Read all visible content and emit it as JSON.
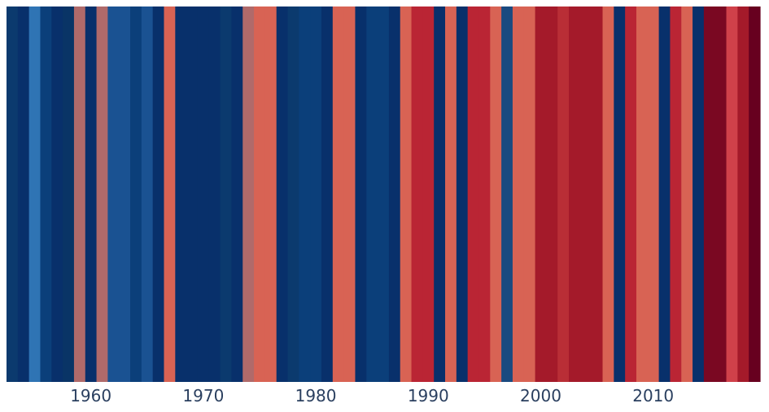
{
  "chart_data": {
    "type": "heatmap",
    "title": "",
    "xlabel": "",
    "ylabel": "",
    "x_start": 1953,
    "x_end": 2019,
    "xlim": [
      1952.5,
      2019.5
    ],
    "x_ticks": [
      1960,
      1970,
      1980,
      1990,
      2000,
      2010
    ],
    "x_tick_labels": [
      "1960",
      "1970",
      "1980",
      "1990",
      "2000",
      "2010"
    ],
    "grid": false,
    "legend": false,
    "years": [
      1953,
      1954,
      1955,
      1956,
      1957,
      1958,
      1959,
      1960,
      1961,
      1962,
      1963,
      1964,
      1965,
      1966,
      1967,
      1968,
      1969,
      1970,
      1971,
      1972,
      1973,
      1974,
      1975,
      1976,
      1977,
      1978,
      1979,
      1980,
      1981,
      1982,
      1983,
      1984,
      1985,
      1986,
      1987,
      1988,
      1989,
      1990,
      1991,
      1992,
      1993,
      1994,
      1995,
      1996,
      1997,
      1998,
      1999,
      2000,
      2001,
      2002,
      2003,
      2004,
      2005,
      2006,
      2007,
      2008,
      2009,
      2010,
      2011,
      2012,
      2013,
      2014,
      2015,
      2016,
      2017,
      2018,
      2019
    ],
    "colors": [
      "#0b3a6e",
      "#08306b",
      "#2f74b4",
      "#0b3f7a",
      "#08306b",
      "#093466",
      "#b06a6a",
      "#08306b",
      "#b06a6a",
      "#1a5292",
      "#1a5292",
      "#0b3f7a",
      "#1a5292",
      "#08306b",
      "#d86354",
      "#08306b",
      "#08306b",
      "#08306b",
      "#08306b",
      "#0b3a6e",
      "#08306b",
      "#b06a6a",
      "#d86354",
      "#d86354",
      "#08306b",
      "#0b3a6e",
      "#0b3f7a",
      "#0b3f7a",
      "#08306b",
      "#d86354",
      "#d86354",
      "#08306b",
      "#0b3f7a",
      "#0b3f7a",
      "#08306b",
      "#d86354",
      "#ba2534",
      "#ba2534",
      "#08306b",
      "#d86354",
      "#08306b",
      "#ba2534",
      "#ba2534",
      "#d86354",
      "#1a4a80",
      "#d86354",
      "#d86354",
      "#a41a2a",
      "#a41a2a",
      "#b92e36",
      "#a41a2a",
      "#a41a2a",
      "#a41a2a",
      "#d86354",
      "#08306b",
      "#ba2534",
      "#d86354",
      "#d86354",
      "#08306b",
      "#ba2534",
      "#d86354",
      "#08306b",
      "#7a0822",
      "#7a0822",
      "#d0414a",
      "#a41a2a",
      "#67001f"
    ]
  }
}
